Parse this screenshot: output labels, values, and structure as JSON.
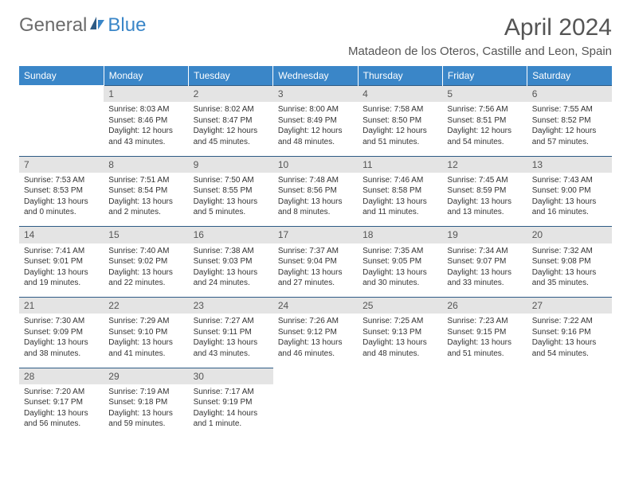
{
  "logo": {
    "textA": "General",
    "textB": "Blue"
  },
  "header": {
    "title": "April 2024",
    "location": "Matadeon de los Oteros, Castille and Leon, Spain"
  },
  "day_headers": [
    "Sunday",
    "Monday",
    "Tuesday",
    "Wednesday",
    "Thursday",
    "Friday",
    "Saturday"
  ],
  "colors": {
    "header_bg": "#3a86c8",
    "header_text": "#ffffff",
    "daynum_bg": "#e4e4e4",
    "daynum_border": "#2e5b85",
    "text": "#333333"
  },
  "weeks": [
    [
      null,
      {
        "n": "1",
        "sunrise": "Sunrise: 8:03 AM",
        "sunset": "Sunset: 8:46 PM",
        "day1": "Daylight: 12 hours",
        "day2": "and 43 minutes."
      },
      {
        "n": "2",
        "sunrise": "Sunrise: 8:02 AM",
        "sunset": "Sunset: 8:47 PM",
        "day1": "Daylight: 12 hours",
        "day2": "and 45 minutes."
      },
      {
        "n": "3",
        "sunrise": "Sunrise: 8:00 AM",
        "sunset": "Sunset: 8:49 PM",
        "day1": "Daylight: 12 hours",
        "day2": "and 48 minutes."
      },
      {
        "n": "4",
        "sunrise": "Sunrise: 7:58 AM",
        "sunset": "Sunset: 8:50 PM",
        "day1": "Daylight: 12 hours",
        "day2": "and 51 minutes."
      },
      {
        "n": "5",
        "sunrise": "Sunrise: 7:56 AM",
        "sunset": "Sunset: 8:51 PM",
        "day1": "Daylight: 12 hours",
        "day2": "and 54 minutes."
      },
      {
        "n": "6",
        "sunrise": "Sunrise: 7:55 AM",
        "sunset": "Sunset: 8:52 PM",
        "day1": "Daylight: 12 hours",
        "day2": "and 57 minutes."
      }
    ],
    [
      {
        "n": "7",
        "sunrise": "Sunrise: 7:53 AM",
        "sunset": "Sunset: 8:53 PM",
        "day1": "Daylight: 13 hours",
        "day2": "and 0 minutes."
      },
      {
        "n": "8",
        "sunrise": "Sunrise: 7:51 AM",
        "sunset": "Sunset: 8:54 PM",
        "day1": "Daylight: 13 hours",
        "day2": "and 2 minutes."
      },
      {
        "n": "9",
        "sunrise": "Sunrise: 7:50 AM",
        "sunset": "Sunset: 8:55 PM",
        "day1": "Daylight: 13 hours",
        "day2": "and 5 minutes."
      },
      {
        "n": "10",
        "sunrise": "Sunrise: 7:48 AM",
        "sunset": "Sunset: 8:56 PM",
        "day1": "Daylight: 13 hours",
        "day2": "and 8 minutes."
      },
      {
        "n": "11",
        "sunrise": "Sunrise: 7:46 AM",
        "sunset": "Sunset: 8:58 PM",
        "day1": "Daylight: 13 hours",
        "day2": "and 11 minutes."
      },
      {
        "n": "12",
        "sunrise": "Sunrise: 7:45 AM",
        "sunset": "Sunset: 8:59 PM",
        "day1": "Daylight: 13 hours",
        "day2": "and 13 minutes."
      },
      {
        "n": "13",
        "sunrise": "Sunrise: 7:43 AM",
        "sunset": "Sunset: 9:00 PM",
        "day1": "Daylight: 13 hours",
        "day2": "and 16 minutes."
      }
    ],
    [
      {
        "n": "14",
        "sunrise": "Sunrise: 7:41 AM",
        "sunset": "Sunset: 9:01 PM",
        "day1": "Daylight: 13 hours",
        "day2": "and 19 minutes."
      },
      {
        "n": "15",
        "sunrise": "Sunrise: 7:40 AM",
        "sunset": "Sunset: 9:02 PM",
        "day1": "Daylight: 13 hours",
        "day2": "and 22 minutes."
      },
      {
        "n": "16",
        "sunrise": "Sunrise: 7:38 AM",
        "sunset": "Sunset: 9:03 PM",
        "day1": "Daylight: 13 hours",
        "day2": "and 24 minutes."
      },
      {
        "n": "17",
        "sunrise": "Sunrise: 7:37 AM",
        "sunset": "Sunset: 9:04 PM",
        "day1": "Daylight: 13 hours",
        "day2": "and 27 minutes."
      },
      {
        "n": "18",
        "sunrise": "Sunrise: 7:35 AM",
        "sunset": "Sunset: 9:05 PM",
        "day1": "Daylight: 13 hours",
        "day2": "and 30 minutes."
      },
      {
        "n": "19",
        "sunrise": "Sunrise: 7:34 AM",
        "sunset": "Sunset: 9:07 PM",
        "day1": "Daylight: 13 hours",
        "day2": "and 33 minutes."
      },
      {
        "n": "20",
        "sunrise": "Sunrise: 7:32 AM",
        "sunset": "Sunset: 9:08 PM",
        "day1": "Daylight: 13 hours",
        "day2": "and 35 minutes."
      }
    ],
    [
      {
        "n": "21",
        "sunrise": "Sunrise: 7:30 AM",
        "sunset": "Sunset: 9:09 PM",
        "day1": "Daylight: 13 hours",
        "day2": "and 38 minutes."
      },
      {
        "n": "22",
        "sunrise": "Sunrise: 7:29 AM",
        "sunset": "Sunset: 9:10 PM",
        "day1": "Daylight: 13 hours",
        "day2": "and 41 minutes."
      },
      {
        "n": "23",
        "sunrise": "Sunrise: 7:27 AM",
        "sunset": "Sunset: 9:11 PM",
        "day1": "Daylight: 13 hours",
        "day2": "and 43 minutes."
      },
      {
        "n": "24",
        "sunrise": "Sunrise: 7:26 AM",
        "sunset": "Sunset: 9:12 PM",
        "day1": "Daylight: 13 hours",
        "day2": "and 46 minutes."
      },
      {
        "n": "25",
        "sunrise": "Sunrise: 7:25 AM",
        "sunset": "Sunset: 9:13 PM",
        "day1": "Daylight: 13 hours",
        "day2": "and 48 minutes."
      },
      {
        "n": "26",
        "sunrise": "Sunrise: 7:23 AM",
        "sunset": "Sunset: 9:15 PM",
        "day1": "Daylight: 13 hours",
        "day2": "and 51 minutes."
      },
      {
        "n": "27",
        "sunrise": "Sunrise: 7:22 AM",
        "sunset": "Sunset: 9:16 PM",
        "day1": "Daylight: 13 hours",
        "day2": "and 54 minutes."
      }
    ],
    [
      {
        "n": "28",
        "sunrise": "Sunrise: 7:20 AM",
        "sunset": "Sunset: 9:17 PM",
        "day1": "Daylight: 13 hours",
        "day2": "and 56 minutes."
      },
      {
        "n": "29",
        "sunrise": "Sunrise: 7:19 AM",
        "sunset": "Sunset: 9:18 PM",
        "day1": "Daylight: 13 hours",
        "day2": "and 59 minutes."
      },
      {
        "n": "30",
        "sunrise": "Sunrise: 7:17 AM",
        "sunset": "Sunset: 9:19 PM",
        "day1": "Daylight: 14 hours",
        "day2": "and 1 minute."
      },
      null,
      null,
      null,
      null
    ]
  ]
}
